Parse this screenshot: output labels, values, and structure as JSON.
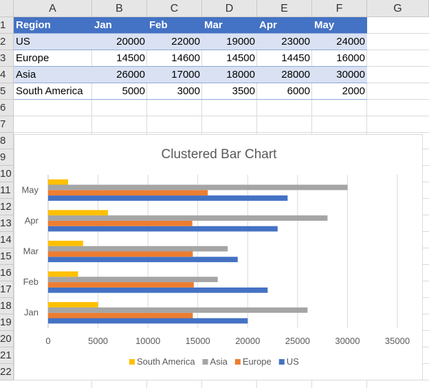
{
  "spreadsheet": {
    "columns": [
      "A",
      "B",
      "C",
      "D",
      "E",
      "F",
      "G"
    ],
    "rows": [
      "1",
      "2",
      "3",
      "4",
      "5",
      "6",
      "7",
      "8",
      "9",
      "10",
      "11",
      "12",
      "13",
      "14",
      "15",
      "16",
      "17",
      "18",
      "19",
      "20",
      "21",
      "22"
    ],
    "table": {
      "header": [
        "Region",
        "Jan",
        "Feb",
        "Mar",
        "Apr",
        "May"
      ],
      "rows": [
        [
          "US",
          "20000",
          "22000",
          "19000",
          "23000",
          "24000"
        ],
        [
          "Europe",
          "14500",
          "14600",
          "14500",
          "14450",
          "16000"
        ],
        [
          "Asia",
          "26000",
          "17000",
          "18000",
          "28000",
          "30000"
        ],
        [
          "South America",
          "5000",
          "3000",
          "3500",
          "6000",
          "2000"
        ]
      ]
    }
  },
  "chart_data": {
    "type": "bar",
    "orientation": "horizontal",
    "title": "Clustered Bar Chart",
    "categories": [
      "Jan",
      "Feb",
      "Mar",
      "Apr",
      "May"
    ],
    "series": [
      {
        "name": "US",
        "color": "#4472c4",
        "values": [
          20000,
          22000,
          19000,
          23000,
          24000
        ]
      },
      {
        "name": "Europe",
        "color": "#ed7d31",
        "values": [
          14500,
          14600,
          14500,
          14450,
          16000
        ]
      },
      {
        "name": "Asia",
        "color": "#a5a5a5",
        "values": [
          26000,
          17000,
          18000,
          28000,
          30000
        ]
      },
      {
        "name": "South America",
        "color": "#ffc000",
        "values": [
          5000,
          3000,
          3500,
          6000,
          2000
        ]
      }
    ],
    "xlim": [
      0,
      35000
    ],
    "xticks": [
      "0",
      "5000",
      "10000",
      "15000",
      "20000",
      "25000",
      "30000",
      "35000"
    ],
    "legend_order": [
      "South America",
      "Asia",
      "Europe",
      "US"
    ],
    "legend_position": "bottom",
    "grid": true
  }
}
